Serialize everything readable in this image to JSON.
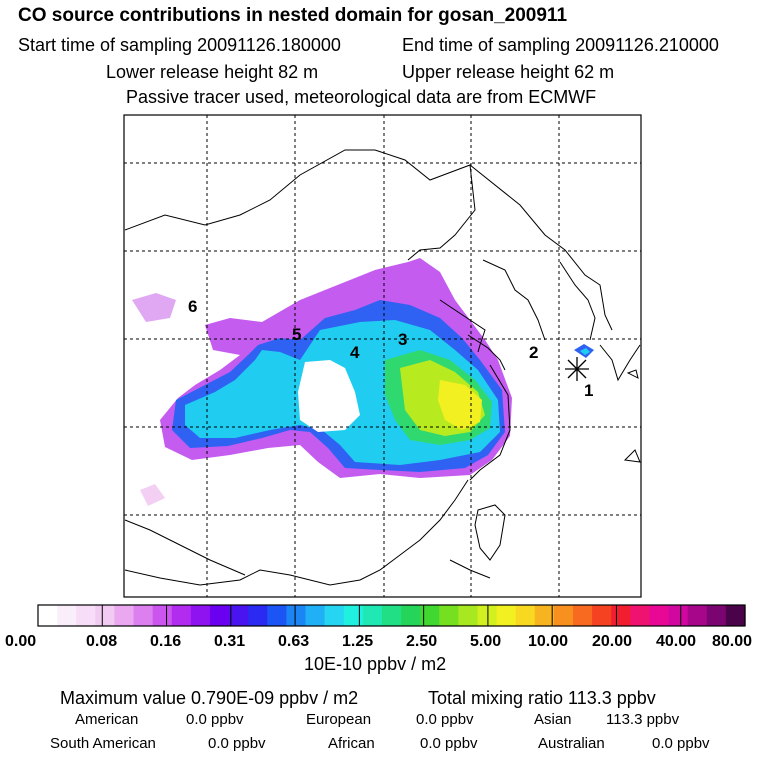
{
  "header": {
    "title": "CO  source contributions in nested domain for gosan_200911",
    "start_label": "Start time of sampling 20091126.180000",
    "end_label": "End time of sampling 20091126.210000",
    "lower_label": "Lower release height   82 m",
    "upper_label": "Upper release height   62 m",
    "note": "Passive tracer used, meteorological data are from ECMWF"
  },
  "map": {
    "region_labels": [
      "1",
      "2",
      "3",
      "4",
      "5",
      "6"
    ],
    "receptor_icon": "asterisk-icon"
  },
  "colorbar": {
    "labels": [
      "0.00",
      "0.08",
      "0.16",
      "0.31",
      "0.63",
      "1.25",
      "2.50",
      "5.00",
      "10.00",
      "20.00",
      "40.00",
      "80.00"
    ],
    "colors": [
      "#ffffff",
      "#fbeefb",
      "#f7ddf7",
      "#f2cbf2",
      "#e9a8f0",
      "#dd80ef",
      "#cc55f0",
      "#b22cf0",
      "#8f12f0",
      "#6a00ef",
      "#4a14f0",
      "#2a2af2",
      "#1c55f5",
      "#1c85f5",
      "#20b0f5",
      "#25d5f2",
      "#20f0e0",
      "#20e8b5",
      "#20df85",
      "#25d55a",
      "#40d830",
      "#75e020",
      "#a8e820",
      "#d2ef20",
      "#f2f020",
      "#f8d820",
      "#f8b420",
      "#f89020",
      "#f86a20",
      "#f54220",
      "#f21e30",
      "#f01270",
      "#e80895",
      "#d0089f",
      "#a8068a",
      "#7a0470",
      "#4a024a"
    ],
    "unit": "10E-10 ppbv / m2"
  },
  "summary": {
    "max_value": "Maximum value  0.790E-09 ppbv / m2",
    "total_mixing": "Total mixing ratio       113.3 ppbv",
    "american_label": "American",
    "american_value": "0.0 ppbv",
    "european_label": "European",
    "european_value": "0.0 ppbv",
    "asian_label": "Asian",
    "asian_value": "113.3 ppbv",
    "south_american_label": "South American",
    "south_american_value": "0.0 ppbv",
    "african_label": "African",
    "african_value": "0.0 ppbv",
    "australian_label": "Australian",
    "australian_value": "0.0 ppbv"
  }
}
